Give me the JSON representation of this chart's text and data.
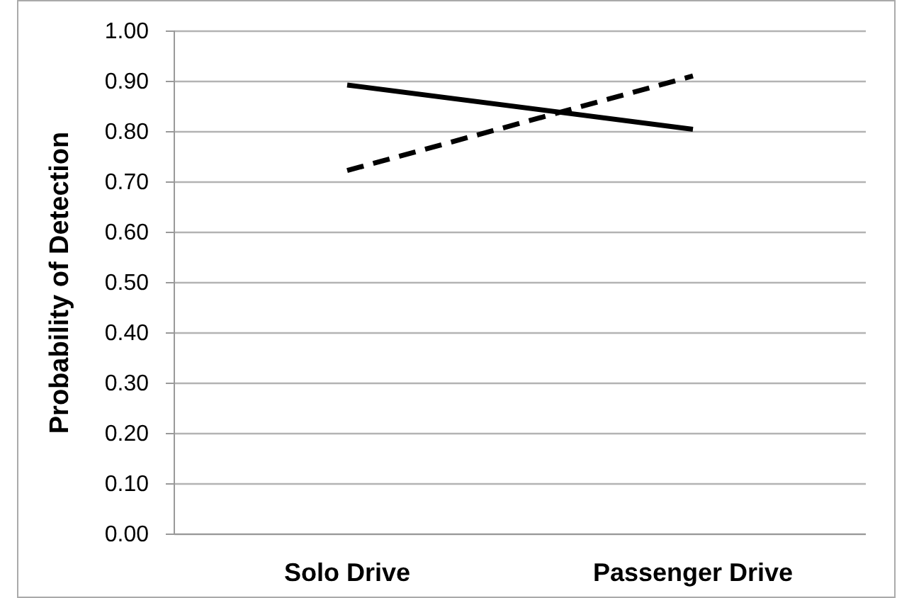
{
  "chart_data": {
    "type": "line",
    "ylabel": "Probability of Detection",
    "categories": [
      "Solo Drive",
      "Passenger Drive"
    ],
    "series": [
      {
        "color": "#000000",
        "line_style": "solid",
        "values": [
          0.893,
          0.805
        ]
      },
      {
        "color": "#000000",
        "line_style": "dashed",
        "values": [
          0.723,
          0.911
        ]
      }
    ],
    "ylim": [
      0,
      1
    ],
    "yticks": [
      {
        "value": 0,
        "label": "0.00"
      },
      {
        "value": 0.1,
        "label": "0.10"
      },
      {
        "value": 0.2,
        "label": "0.20"
      },
      {
        "value": 0.3,
        "label": "0.30"
      },
      {
        "value": 0.4,
        "label": "0.40"
      },
      {
        "value": 0.5,
        "label": "0.50"
      },
      {
        "value": 0.6,
        "label": "0.60"
      },
      {
        "value": 0.7,
        "label": "0.70"
      },
      {
        "value": 0.8,
        "label": "0.80"
      },
      {
        "value": 0.9,
        "label": "0.90"
      },
      {
        "value": 1,
        "label": "1.00"
      }
    ],
    "grid": "y",
    "marker": "none"
  }
}
